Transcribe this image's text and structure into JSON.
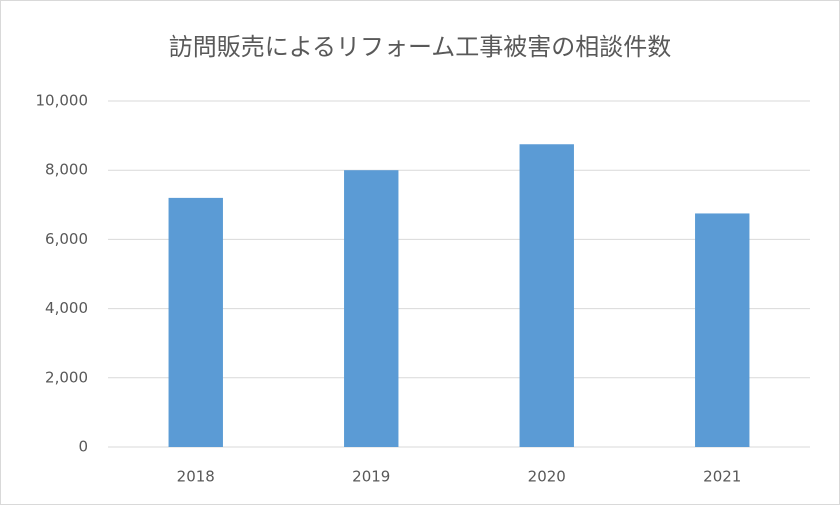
{
  "chart_data": {
    "type": "bar",
    "title": "訪問販売によるリフォーム工事被害の相談件数",
    "categories": [
      "2018",
      "2019",
      "2020",
      "2021"
    ],
    "values": [
      7200,
      8000,
      8750,
      6750
    ],
    "color": "#5b9bd5",
    "ylim": [
      0,
      10000
    ],
    "yticks": [
      0,
      {
        "value": 2000,
        "label": "2,000"
      },
      {
        "value": 4000,
        "label": "4,000"
      },
      {
        "value": 6000,
        "label": "6,000"
      },
      {
        "value": 8000,
        "label": "8,000"
      },
      {
        "value": 10000,
        "label": "10,000"
      }
    ],
    "grid": true
  }
}
